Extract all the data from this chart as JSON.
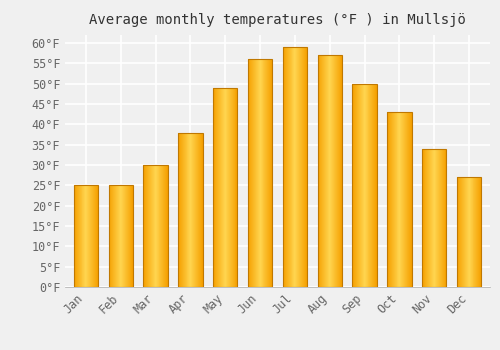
{
  "title": "Average monthly temperatures (°F ) in Mullsjö",
  "months": [
    "Jan",
    "Feb",
    "Mar",
    "Apr",
    "May",
    "Jun",
    "Jul",
    "Aug",
    "Sep",
    "Oct",
    "Nov",
    "Dec"
  ],
  "values": [
    25,
    25,
    30,
    38,
    49,
    56,
    59,
    57,
    50,
    43,
    34,
    27
  ],
  "bar_color_center": "#FFD060",
  "bar_color_edge": "#F5A000",
  "bar_border_color": "#C07800",
  "background_color": "#F0F0F0",
  "grid_color": "#FFFFFF",
  "ylim": [
    0,
    62
  ],
  "yticks": [
    0,
    5,
    10,
    15,
    20,
    25,
    30,
    35,
    40,
    45,
    50,
    55,
    60
  ],
  "ylabel_suffix": "°F",
  "title_fontsize": 10,
  "tick_fontsize": 8.5
}
